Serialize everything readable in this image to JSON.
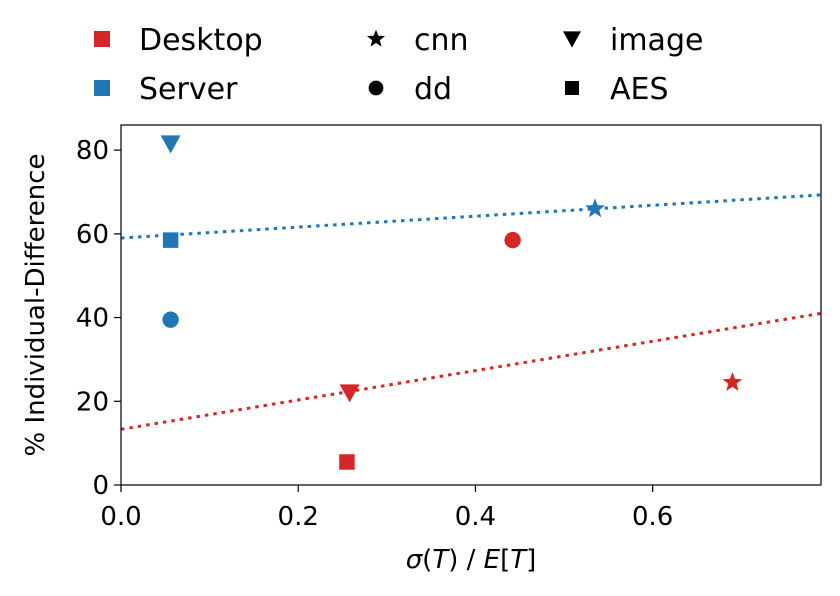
{
  "chart_data": {
    "type": "scatter",
    "title": "",
    "xlabel": "σ(T) / E[T]",
    "ylabel": "% Individual-Difference",
    "xlim": [
      0.0,
      0.79
    ],
    "ylim": [
      0,
      86
    ],
    "xticks": [
      0.0,
      0.2,
      0.4,
      0.6
    ],
    "xtick_labels": [
      "0.0",
      "0.2",
      "0.4",
      "0.6"
    ],
    "yticks": [
      0,
      20,
      40,
      60,
      80
    ],
    "ytick_labels": [
      "0",
      "20",
      "40",
      "60",
      "80"
    ],
    "grid": false,
    "legend_position": "top",
    "color_legend": [
      {
        "name": "Desktop",
        "color": "#d62728"
      },
      {
        "name": "Server",
        "color": "#1f77b4"
      }
    ],
    "marker_legend": [
      {
        "name": "cnn",
        "marker": "star"
      },
      {
        "name": "dd",
        "marker": "circle"
      },
      {
        "name": "image",
        "marker": "triangle-down"
      },
      {
        "name": "AES",
        "marker": "square"
      }
    ],
    "series": [
      {
        "name": "Desktop",
        "color": "#d62728",
        "points": [
          {
            "workload": "cnn",
            "x": 0.69,
            "y": 24.5
          },
          {
            "workload": "dd",
            "x": 0.442,
            "y": 58.5
          },
          {
            "workload": "image",
            "x": 0.258,
            "y": 22.0
          },
          {
            "workload": "AES",
            "x": 0.255,
            "y": 5.5
          }
        ],
        "trendline": {
          "x": [
            0.0,
            0.79
          ],
          "y": [
            13.3,
            41.0
          ]
        }
      },
      {
        "name": "Server",
        "color": "#1f77b4",
        "points": [
          {
            "workload": "cnn",
            "x": 0.535,
            "y": 66.0
          },
          {
            "workload": "dd",
            "x": 0.056,
            "y": 39.5
          },
          {
            "workload": "image",
            "x": 0.056,
            "y": 81.5
          },
          {
            "workload": "AES",
            "x": 0.056,
            "y": 58.5
          }
        ],
        "trendline": {
          "x": [
            0.0,
            0.79
          ],
          "y": [
            59.0,
            69.3
          ]
        }
      }
    ]
  }
}
